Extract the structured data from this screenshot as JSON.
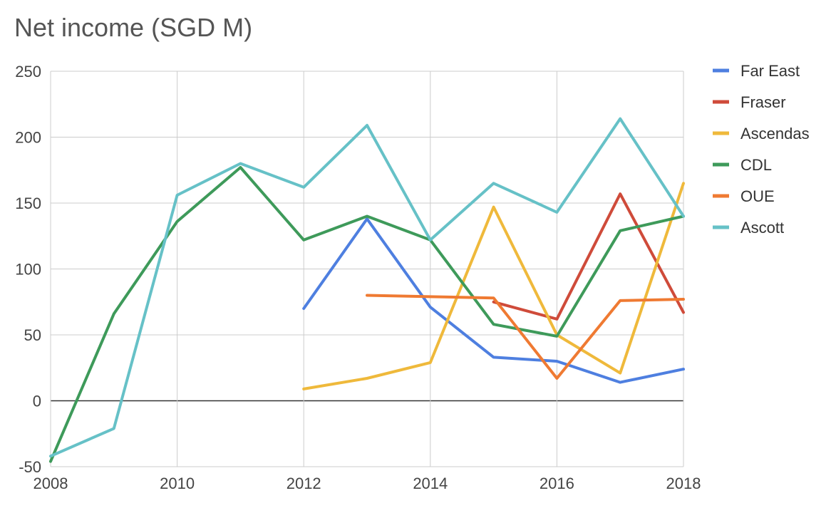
{
  "chart_data": {
    "type": "line",
    "title": "Net income (SGD M)",
    "xlabel": "",
    "ylabel": "",
    "xlim": [
      2008,
      2018
    ],
    "ylim": [
      -50,
      250
    ],
    "x_ticks": [
      2008,
      2010,
      2012,
      2014,
      2016,
      2018
    ],
    "y_ticks": [
      -50,
      0,
      50,
      100,
      150,
      200,
      250
    ],
    "x_gridlines": [
      2008,
      2010,
      2012,
      2014,
      2016,
      2018
    ],
    "grid": true,
    "legend_position": "right",
    "series": [
      {
        "name": "Far East",
        "color": "#4e7fe0",
        "points": [
          [
            2012,
            70
          ],
          [
            2013,
            138
          ],
          [
            2014,
            71
          ],
          [
            2015,
            33
          ],
          [
            2016,
            30
          ],
          [
            2017,
            14
          ],
          [
            2018,
            24
          ]
        ]
      },
      {
        "name": "Fraser",
        "color": "#cf4b3a",
        "points": [
          [
            2015,
            75
          ],
          [
            2016,
            62
          ],
          [
            2017,
            157
          ],
          [
            2018,
            67
          ]
        ]
      },
      {
        "name": "Ascendas",
        "color": "#efb93b",
        "points": [
          [
            2012,
            9
          ],
          [
            2013,
            17
          ],
          [
            2014,
            29
          ],
          [
            2015,
            147
          ],
          [
            2016,
            50
          ],
          [
            2017,
            21
          ],
          [
            2018,
            165
          ]
        ]
      },
      {
        "name": "CDL",
        "color": "#3e9a5a",
        "points": [
          [
            2008,
            -46
          ],
          [
            2009,
            66
          ],
          [
            2010,
            136
          ],
          [
            2011,
            177
          ],
          [
            2012,
            122
          ],
          [
            2013,
            140
          ],
          [
            2014,
            122
          ],
          [
            2015,
            58
          ],
          [
            2016,
            49
          ],
          [
            2017,
            129
          ],
          [
            2018,
            140
          ]
        ]
      },
      {
        "name": "OUE",
        "color": "#ef7a32",
        "points": [
          [
            2013,
            80
          ],
          [
            2014,
            79
          ],
          [
            2015,
            78
          ],
          [
            2016,
            17
          ],
          [
            2017,
            76
          ],
          [
            2018,
            77
          ]
        ]
      },
      {
        "name": "Ascott",
        "color": "#66c1c7",
        "points": [
          [
            2008,
            -42
          ],
          [
            2009,
            -21
          ],
          [
            2010,
            156
          ],
          [
            2011,
            180
          ],
          [
            2012,
            162
          ],
          [
            2013,
            209
          ],
          [
            2014,
            122
          ],
          [
            2015,
            165
          ],
          [
            2016,
            143
          ],
          [
            2017,
            214
          ],
          [
            2018,
            140
          ]
        ]
      }
    ]
  }
}
